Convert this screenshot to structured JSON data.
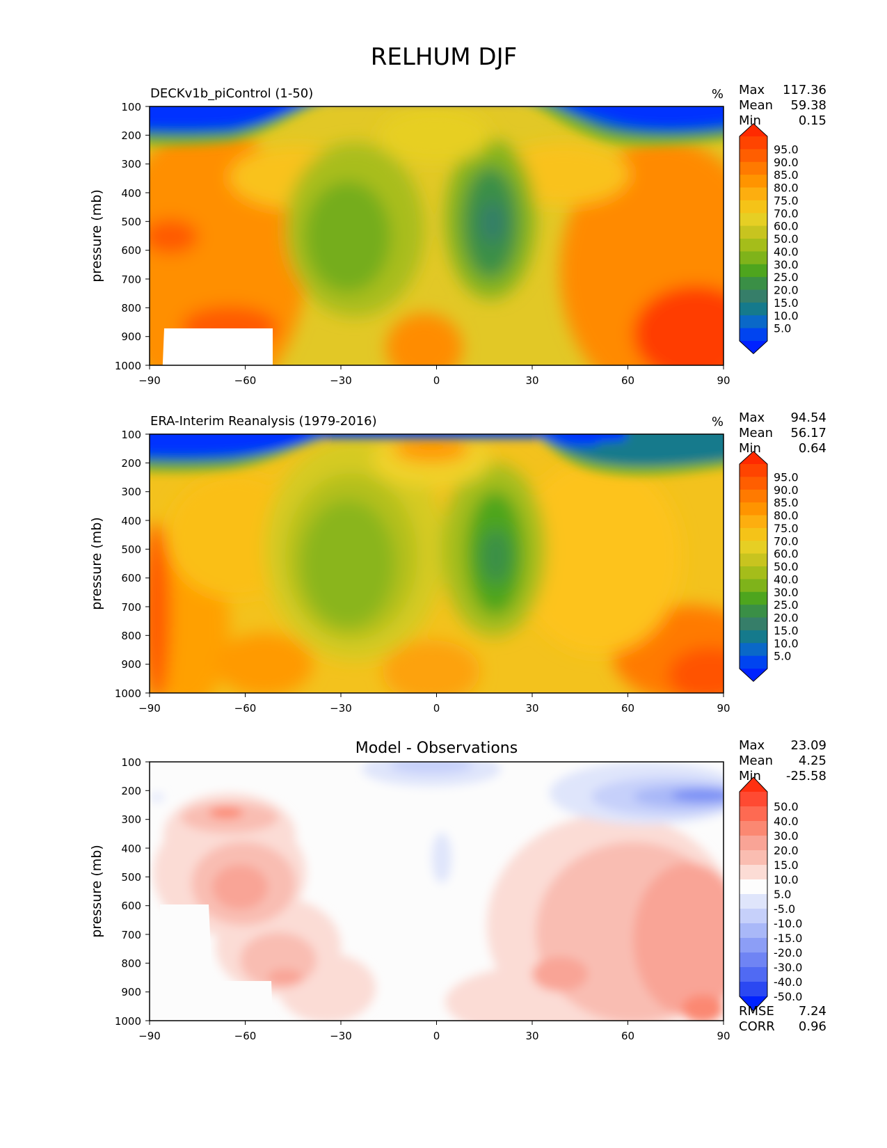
{
  "figure": {
    "title": "RELHUM DJF"
  },
  "chart_data": [
    {
      "type": "heatmap",
      "subtitle_left": "DECKv1b_piControl (1-50)",
      "units": "%",
      "ylabel": "pressure (mb)",
      "xlabel": "",
      "xlim": [
        -90,
        90
      ],
      "ylim": [
        1000,
        100
      ],
      "x_ticks": [
        -90,
        -60,
        -30,
        0,
        30,
        60,
        90
      ],
      "x_tick_labels": [
        "−90",
        "−60",
        "−30",
        "0",
        "30",
        "60",
        "90"
      ],
      "y_ticks": [
        100,
        200,
        300,
        400,
        500,
        600,
        700,
        800,
        900,
        1000
      ],
      "stats": [
        {
          "label": "Max",
          "value": "117.36"
        },
        {
          "label": "Mean",
          "value": "59.38"
        },
        {
          "label": "Min",
          "value": "0.15"
        }
      ],
      "colorbar_levels": [
        "95.0",
        "90.0",
        "85.0",
        "80.0",
        "75.0",
        "70.0",
        "60.0",
        "50.0",
        "40.0",
        "30.0",
        "25.0",
        "20.0",
        "15.0",
        "10.0",
        "5.0"
      ],
      "colorbar_colors": [
        "#ff2a00",
        "#ff4400",
        "#ff5e00",
        "#ff7a00",
        "#ff9400",
        "#fdae0f",
        "#f5c318",
        "#e6cf24",
        "#c8c41f",
        "#a5bd1a",
        "#7fb31a",
        "#4ea51e",
        "#3a8f46",
        "#367e69",
        "#157a8c",
        "#0a68c8",
        "#0044f0",
        "#0022ff"
      ],
      "grid": false,
      "legend": "colorbar-right",
      "masked_region": "south-pole-below-ground"
    },
    {
      "type": "heatmap",
      "subtitle_left": "ERA-Interim Reanalysis (1979-2016)",
      "units": "%",
      "ylabel": "pressure (mb)",
      "xlabel": "",
      "xlim": [
        -90,
        90
      ],
      "ylim": [
        1000,
        100
      ],
      "x_ticks": [
        -90,
        -60,
        -30,
        0,
        30,
        60,
        90
      ],
      "x_tick_labels": [
        "−90",
        "−60",
        "−30",
        "0",
        "30",
        "60",
        "90"
      ],
      "y_ticks": [
        100,
        200,
        300,
        400,
        500,
        600,
        700,
        800,
        900,
        1000
      ],
      "stats": [
        {
          "label": "Max",
          "value": "94.54"
        },
        {
          "label": "Mean",
          "value": "56.17"
        },
        {
          "label": "Min",
          "value": "0.64"
        }
      ],
      "colorbar_levels": [
        "95.0",
        "90.0",
        "85.0",
        "80.0",
        "75.0",
        "70.0",
        "60.0",
        "50.0",
        "40.0",
        "30.0",
        "25.0",
        "20.0",
        "15.0",
        "10.0",
        "5.0"
      ],
      "colorbar_colors": [
        "#ff2a00",
        "#ff4400",
        "#ff5e00",
        "#ff7a00",
        "#ff9400",
        "#fdae0f",
        "#f5c318",
        "#e6cf24",
        "#c8c41f",
        "#a5bd1a",
        "#7fb31a",
        "#4ea51e",
        "#3a8f46",
        "#367e69",
        "#157a8c",
        "#0a68c8",
        "#0044f0",
        "#0022ff"
      ],
      "grid": false,
      "legend": "colorbar-right"
    },
    {
      "type": "heatmap",
      "title": "Model - Observations",
      "ylabel": "pressure (mb)",
      "xlabel": "",
      "xlim": [
        -90,
        90
      ],
      "ylim": [
        1000,
        100
      ],
      "x_ticks": [
        -90,
        -60,
        -30,
        0,
        30,
        60,
        90
      ],
      "x_tick_labels": [
        "−90",
        "−60",
        "−30",
        "0",
        "30",
        "60",
        "90"
      ],
      "y_ticks": [
        100,
        200,
        300,
        400,
        500,
        600,
        700,
        800,
        900,
        1000
      ],
      "stats": [
        {
          "label": "Max",
          "value": "23.09"
        },
        {
          "label": "Mean",
          "value": "4.25"
        },
        {
          "label": "Min",
          "value": "-25.58"
        }
      ],
      "extra_stats": [
        {
          "label": "RMSE",
          "value": "7.24"
        },
        {
          "label": "CORR",
          "value": "0.96"
        }
      ],
      "colorbar_levels": [
        "50.0",
        "40.0",
        "30.0",
        "20.0",
        "15.0",
        "10.0",
        "5.0",
        "-5.0",
        "-10.0",
        "-15.0",
        "-20.0",
        "-30.0",
        "-40.0",
        "-50.0"
      ],
      "colorbar_colors": [
        "#ff3010",
        "#ff4a32",
        "#fe6a52",
        "#fb8872",
        "#f9a496",
        "#fabdb1",
        "#fcdcd5",
        "#fdfdfd",
        "#dfe5fb",
        "#c6d0fa",
        "#a9b8f8",
        "#8c9ef6",
        "#6f84f4",
        "#506af3",
        "#2b48f2",
        "#0022ff"
      ],
      "grid": false,
      "legend": "colorbar-right"
    }
  ]
}
